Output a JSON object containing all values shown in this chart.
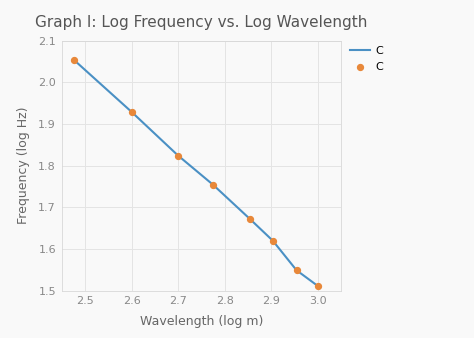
{
  "title": "Graph I: Log Frequency vs. Log Wavelength",
  "xlabel": "Wavelength (log m)",
  "ylabel": "Frequency (log Hz)",
  "x_data": [
    2.477,
    2.6,
    2.7,
    2.775,
    2.854,
    2.903,
    2.954,
    3.0
  ],
  "y_data": [
    2.053,
    1.929,
    1.824,
    1.754,
    1.672,
    1.62,
    1.549,
    1.511
  ],
  "line_color": "#4a90c4",
  "dot_color": "#e8883a",
  "line_label": "C",
  "dot_label": "C",
  "xlim": [
    2.45,
    3.05
  ],
  "ylim": [
    1.5,
    2.1
  ],
  "xticks": [
    2.5,
    2.6,
    2.7,
    2.8,
    2.9,
    3.0
  ],
  "yticks": [
    1.5,
    1.6,
    1.7,
    1.8,
    1.9,
    2.0,
    2.1
  ],
  "background_color": "#f9f9f9",
  "plot_bg_color": "#f9f9f9",
  "grid_color": "#e4e4e4",
  "title_fontsize": 11,
  "label_fontsize": 9,
  "tick_fontsize": 8,
  "tick_color": "#888888",
  "label_color": "#666666",
  "title_color": "#555555"
}
